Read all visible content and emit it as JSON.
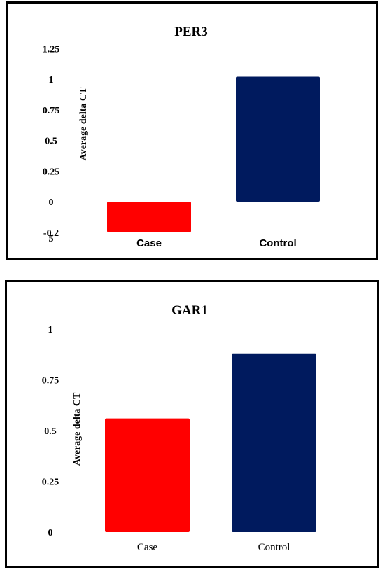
{
  "chart_data": [
    {
      "type": "bar",
      "title": "PER3",
      "ylabel": "Average delta CT",
      "categories": [
        "Case",
        "Control"
      ],
      "values": [
        -0.25,
        1.02
      ],
      "colors": [
        "#ff0000",
        "#001a5e"
      ],
      "yticks": [
        {
          "value": 1.25,
          "label": "1.25"
        },
        {
          "value": 1,
          "label": "1"
        },
        {
          "value": 0.75,
          "label": "0.75"
        },
        {
          "value": 0.5,
          "label": "0.5"
        },
        {
          "value": 0.25,
          "label": "0.25"
        },
        {
          "value": 0,
          "label": "0"
        },
        {
          "value": -0.25,
          "label": "-0.2"
        }
      ],
      "ytick_overflow": "5",
      "ylim": [
        -0.25,
        1.25
      ],
      "grid": false,
      "legend": "none"
    },
    {
      "type": "bar",
      "title": "GAR1",
      "ylabel": "Average delta CT",
      "categories": [
        "Case",
        "Control"
      ],
      "values": [
        0.56,
        0.88
      ],
      "colors": [
        "#ff0000",
        "#001a5e"
      ],
      "yticks": [
        {
          "value": 1,
          "label": "1"
        },
        {
          "value": 0.75,
          "label": "0.75"
        },
        {
          "value": 0.5,
          "label": "0.5"
        },
        {
          "value": 0.25,
          "label": "0.25"
        },
        {
          "value": 0,
          "label": "0"
        }
      ],
      "ylim": [
        0,
        1
      ],
      "grid": false,
      "legend": "none"
    }
  ]
}
